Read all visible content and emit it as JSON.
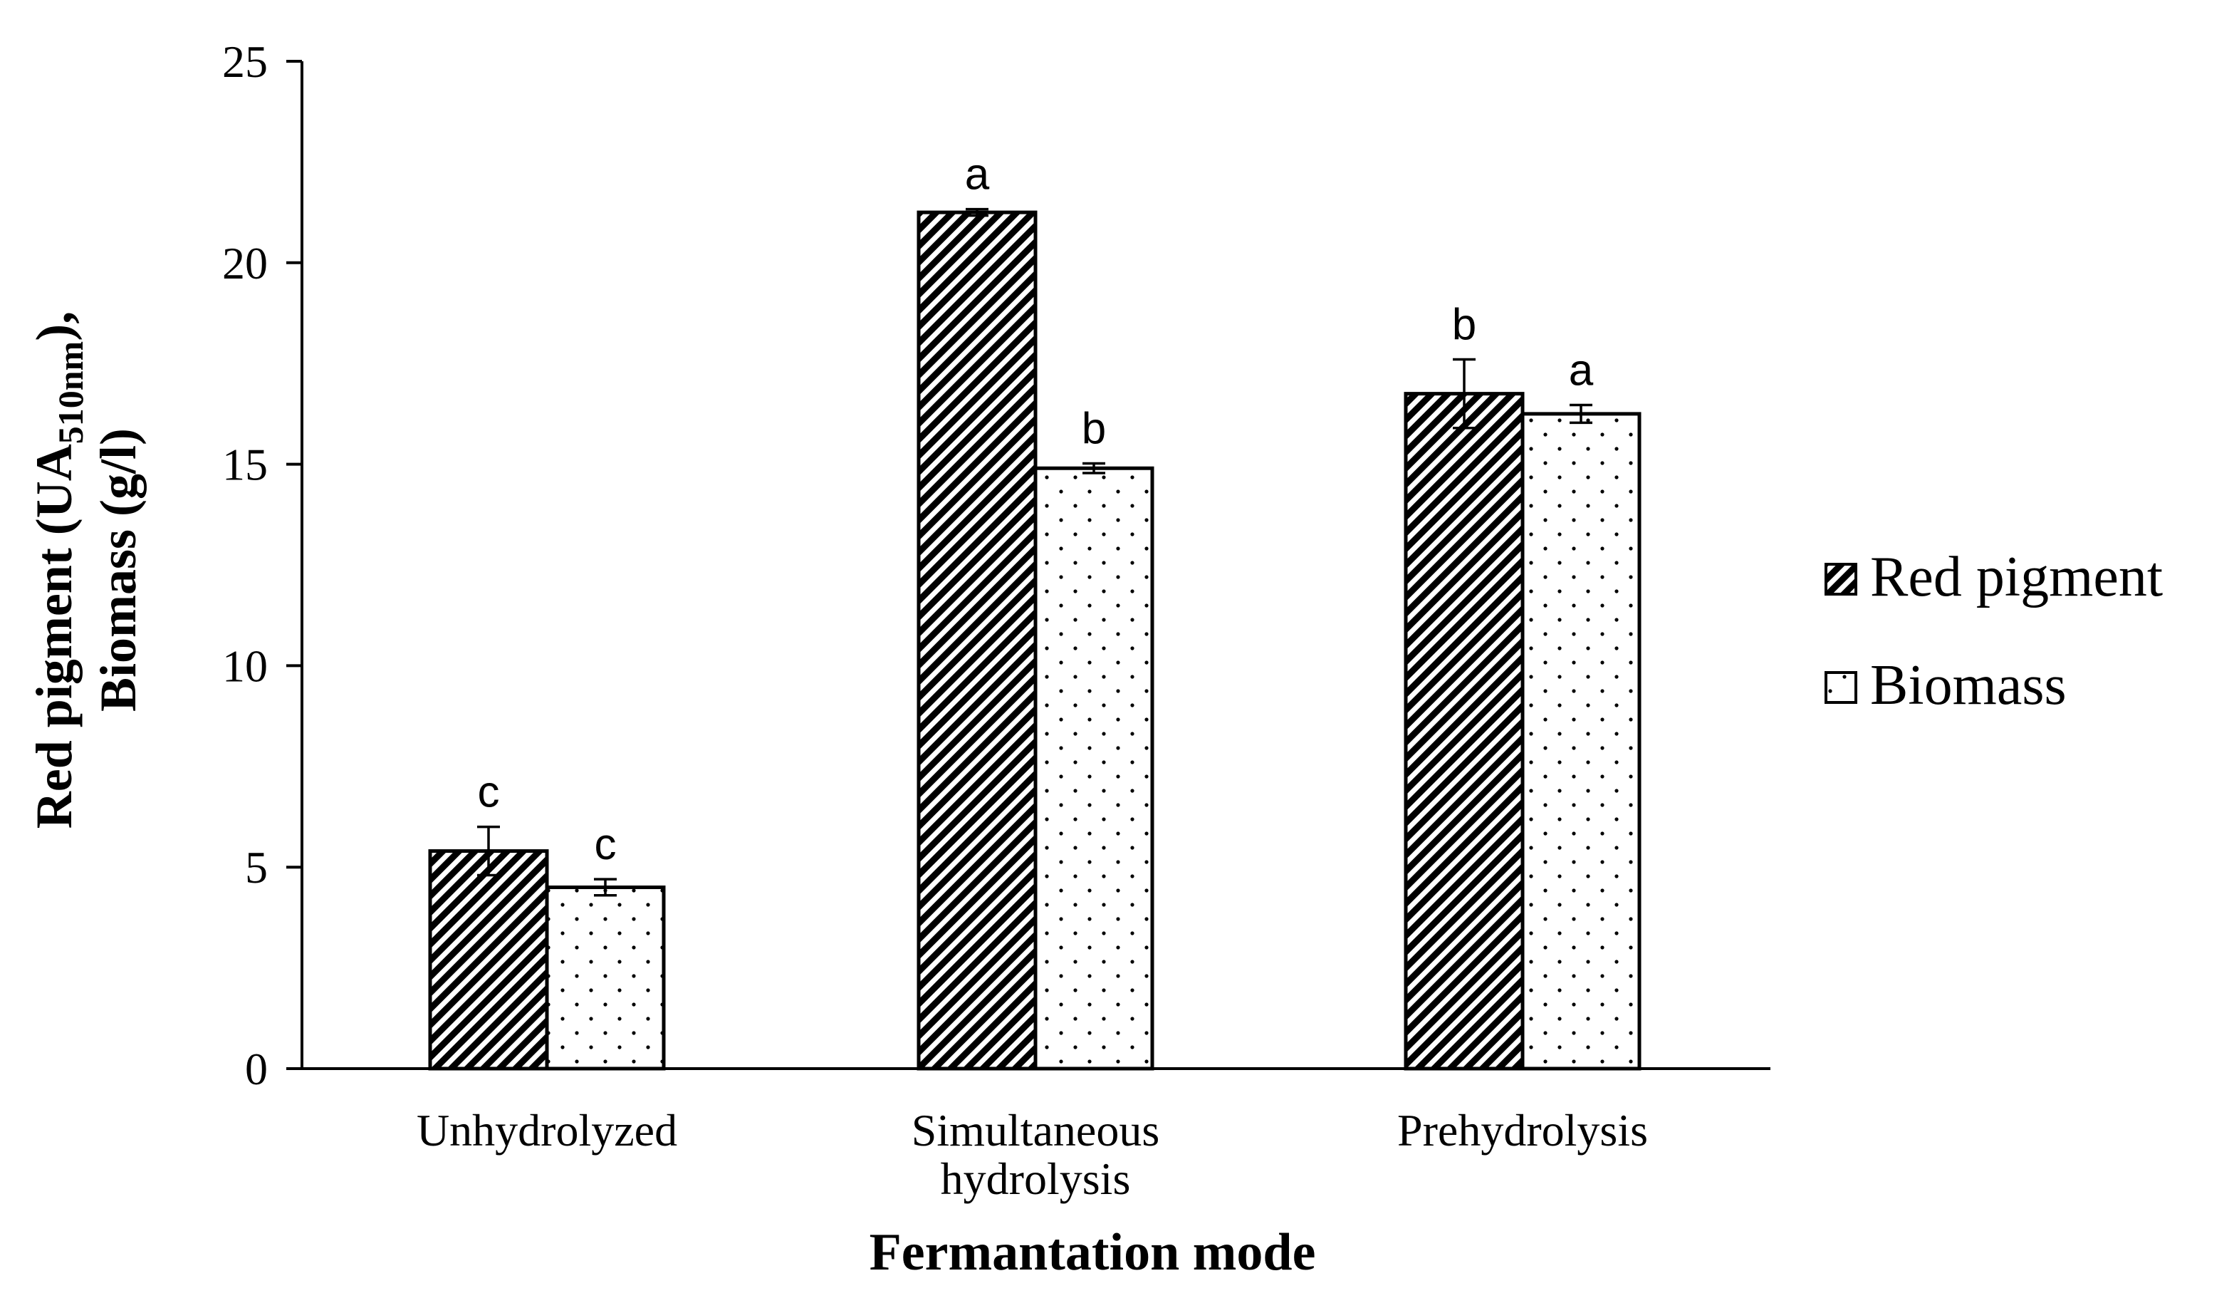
{
  "chart_data": {
    "type": "bar",
    "title": "",
    "xlabel": "Fermantation mode",
    "ylabel": {
      "prefix": "Red pigment (UA",
      "subscript": "510nm",
      "suffix": "),",
      "line2": "Biomass (g/l)"
    },
    "ylim": [
      0,
      25
    ],
    "yticks": [
      0,
      5,
      10,
      15,
      20,
      25
    ],
    "grid": false,
    "legend_position": "right",
    "categories": [
      [
        "Unhydrolyzed"
      ],
      [
        "Simultaneous",
        "hydrolysis"
      ],
      [
        "Prehydrolysis"
      ]
    ],
    "series": [
      {
        "name": "Red pigment",
        "pattern": "diagonal-hatch",
        "values": [
          5.4,
          21.25,
          16.75
        ],
        "errors": [
          0.6,
          0.08,
          0.85
        ],
        "letters": [
          "c",
          "a",
          "b"
        ]
      },
      {
        "name": "Biomass",
        "pattern": "dots",
        "values": [
          4.5,
          14.9,
          16.25
        ],
        "errors": [
          0.2,
          0.12,
          0.22
        ],
        "letters": [
          "c",
          "b",
          "a"
        ]
      }
    ],
    "colors": {
      "stroke": "#000000",
      "fill": "#ffffff"
    }
  }
}
